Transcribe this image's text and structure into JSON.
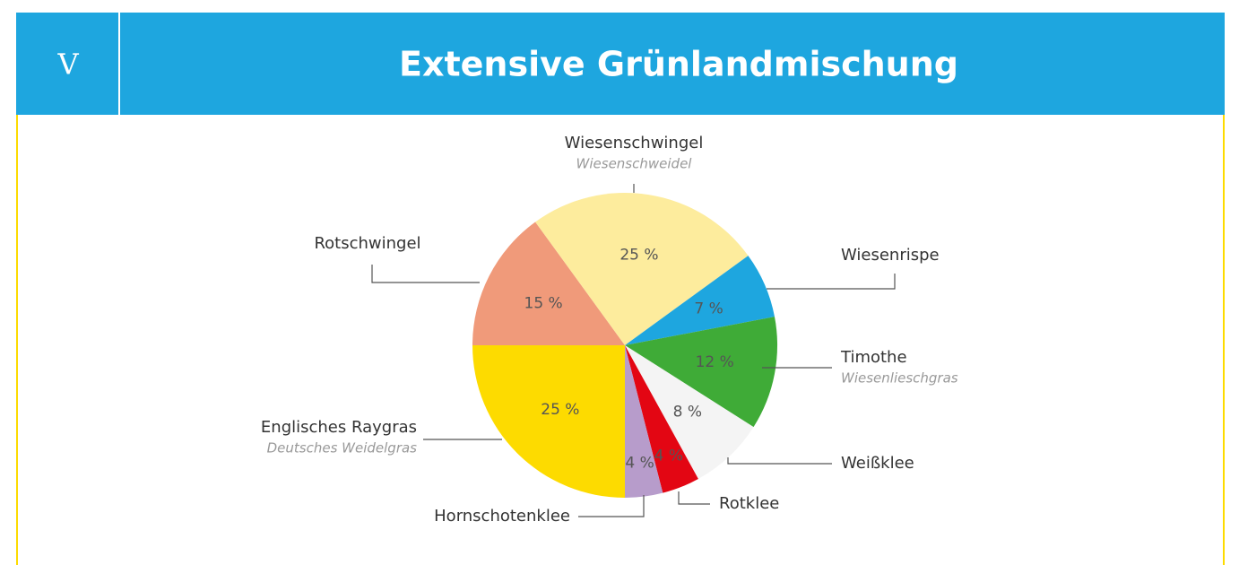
{
  "header": {
    "number": "V",
    "title": "Extensive Grünlandmischung"
  },
  "chart_data": {
    "type": "pie",
    "categories": [
      "Englisches Raygras",
      "Rotschwingel",
      "Wiesenschwingel",
      "Wiesenrispe",
      "Timothe",
      "Weißklee",
      "Rotklee",
      "Hornschotenklee"
    ],
    "subtitles": [
      "Deutsches Weidelgras",
      null,
      "Wiesenschweidel",
      null,
      "Wiesenlieschgras",
      null,
      null,
      null
    ],
    "values": [
      25,
      15,
      25,
      7,
      12,
      8,
      4,
      4
    ],
    "value_labels": [
      "25 %",
      "15 %",
      "25 %",
      "7 %",
      "12 %",
      "8 %",
      "4 %",
      "4 %"
    ],
    "colors": [
      "#fddb00",
      "#f09a7a",
      "#fdec9d",
      "#1ea6df",
      "#3fab37",
      "#f4f4f4",
      "#e30613",
      "#b79ccb"
    ]
  }
}
